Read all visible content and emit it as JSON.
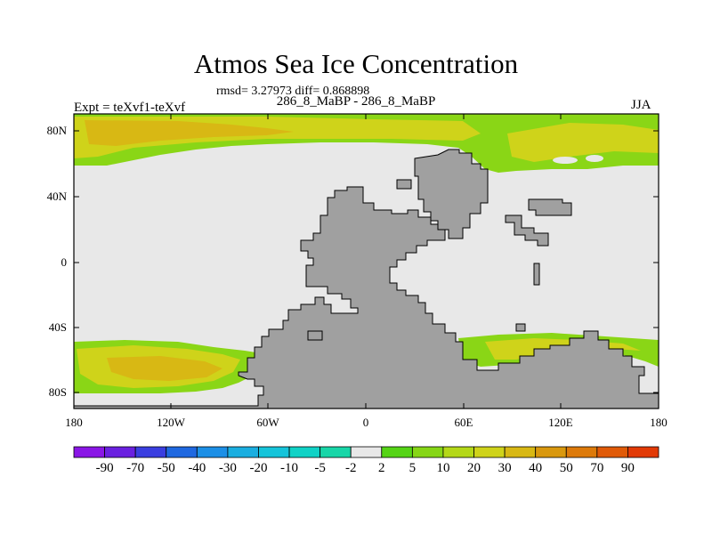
{
  "title": "Atmos Sea Ice Concentration",
  "stats": "rmsd= 3.27973 diff= 0.868898",
  "subtitle": "286_8_MaBP - 286_8_MaBP",
  "experiment": "Expt = teXvf1-teXvf",
  "season": "JJA",
  "lat_ticks": [
    "80N",
    "40N",
    "0",
    "40S",
    "80S"
  ],
  "lon_ticks": [
    "180",
    "120W",
    "60W",
    "0",
    "60E",
    "120E",
    "180"
  ],
  "colorbar": {
    "labels": [
      "-90",
      "-70",
      "-50",
      "-40",
      "-30",
      "-20",
      "-10",
      "-5",
      "-2",
      "2",
      "5",
      "10",
      "20",
      "30",
      "40",
      "50",
      "70",
      "90"
    ],
    "colors": [
      "#8a16e6",
      "#6a20e0",
      "#3a3ee0",
      "#1f68e0",
      "#1c8fe6",
      "#1aaee0",
      "#15c4da",
      "#10d2c6",
      "#18d6a8",
      "#e8e8e8",
      "#55d416",
      "#86d616",
      "#b4d818",
      "#cfd31a",
      "#d8b814",
      "#d9980e",
      "#dd7a0a",
      "#e05a08",
      "#e23a06"
    ]
  },
  "map_colors": {
    "land": "#a0a0a0",
    "ocean_zero": "#e8e8e8",
    "ice_low": "#8ad616",
    "ice_mid": "#cfd31a",
    "ice_high": "#d8b814"
  }
}
